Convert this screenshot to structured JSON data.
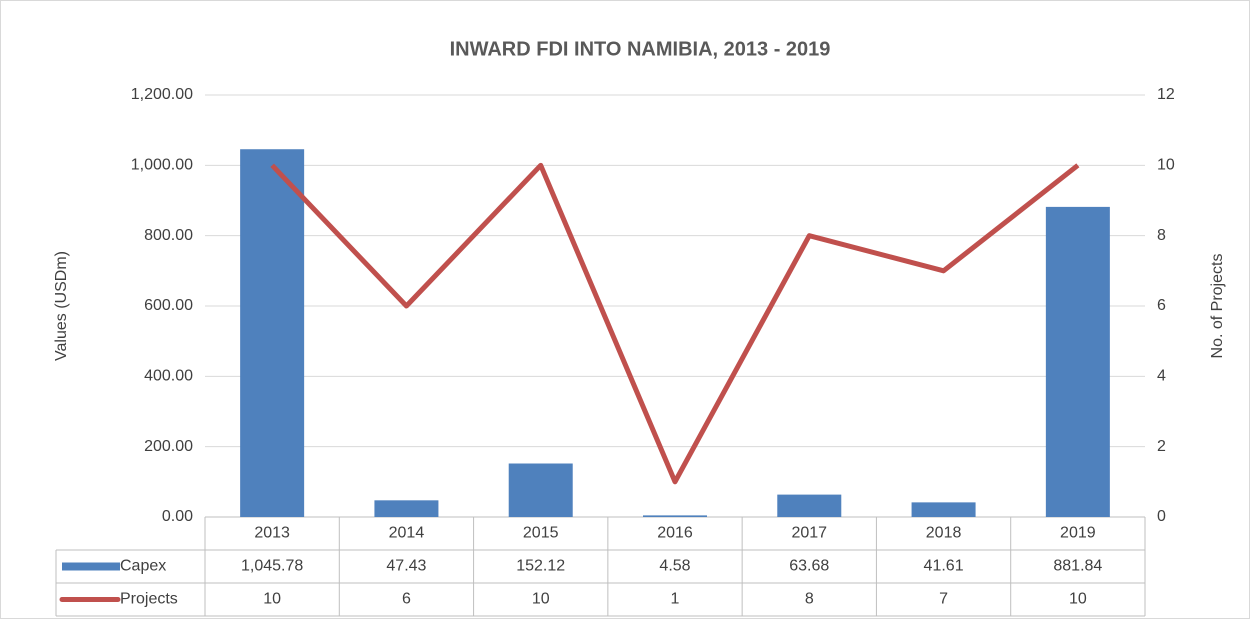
{
  "chart_data": {
    "type": "bar",
    "title": "INWARD FDI INTO NAMIBIA, 2013 - 2019",
    "y_label": "Values (USDm)",
    "y2_label": "No. of Projects",
    "categories": [
      "2013",
      "2014",
      "2015",
      "2016",
      "2017",
      "2018",
      "2019"
    ],
    "series": [
      {
        "name": "Capex",
        "type": "bar",
        "color": "#4f81bd",
        "values": [
          1045.78,
          47.43,
          152.12,
          4.58,
          63.68,
          41.61,
          881.84
        ],
        "value_labels": [
          "1,045.78",
          "47.43",
          "152.12",
          "4.58",
          "63.68",
          "41.61",
          "881.84"
        ]
      },
      {
        "name": "Projects",
        "type": "line",
        "axis": "y2",
        "color": "#c0504d",
        "values": [
          10,
          6,
          10,
          1,
          8,
          7,
          10
        ]
      }
    ],
    "ylim": [
      0,
      1200
    ],
    "yticks": [
      {
        "value": 0,
        "label": "0.00"
      },
      {
        "value": 200,
        "label": "200.00"
      },
      {
        "value": 400,
        "label": "400.00"
      },
      {
        "value": 600,
        "label": "600.00"
      },
      {
        "value": 800,
        "label": "800.00"
      },
      {
        "value": 1000,
        "label": "1,000.00"
      },
      {
        "value": 1200,
        "label": "1,200.00"
      }
    ],
    "y2lim": [
      0,
      12
    ],
    "y2ticks": [
      0,
      2,
      4,
      6,
      8,
      10,
      12
    ],
    "grid": true,
    "data_table": true
  }
}
